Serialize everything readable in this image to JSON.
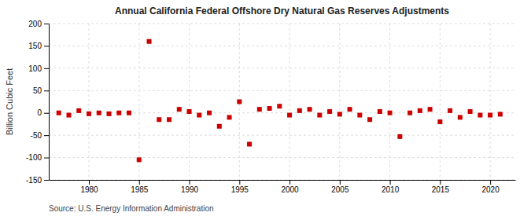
{
  "chart_data": {
    "type": "scatter",
    "title": "Annual California Federal Offshore Dry Natural Gas Reserves Adjustments",
    "ylabel": "Billion Cubic Feet",
    "annotations": [
      "Source: U.S. Energy Information Administration"
    ],
    "x": [
      1977,
      1978,
      1979,
      1980,
      1981,
      1982,
      1983,
      1984,
      1985,
      1986,
      1987,
      1988,
      1989,
      1990,
      1991,
      1992,
      1993,
      1994,
      1995,
      1996,
      1997,
      1998,
      1999,
      2000,
      2001,
      2002,
      2003,
      2004,
      2005,
      2006,
      2007,
      2008,
      2009,
      2010,
      2011,
      2012,
      2013,
      2014,
      2015,
      2016,
      2017,
      2018,
      2019,
      2020,
      2021
    ],
    "values": [
      0,
      -5,
      5,
      -2,
      0,
      -2,
      0,
      0,
      -105,
      160,
      -15,
      -15,
      8,
      3,
      -5,
      0,
      -30,
      -10,
      25,
      -70,
      8,
      10,
      15,
      -5,
      5,
      8,
      -5,
      3,
      -3,
      8,
      -5,
      -15,
      3,
      0,
      -53,
      0,
      5,
      8,
      -20,
      5,
      -10,
      3,
      -5,
      -5,
      -3
    ],
    "color": "#cc0000",
    "marker": "square",
    "xlim": [
      1976,
      2022.5
    ],
    "xticks": [
      1980,
      1985,
      1990,
      1995,
      2000,
      2005,
      2010,
      2015,
      2020
    ],
    "ylim": [
      -150,
      200
    ],
    "yticks": [
      -150,
      -100,
      -50,
      0,
      50,
      100,
      150,
      200
    ],
    "grid": true
  }
}
